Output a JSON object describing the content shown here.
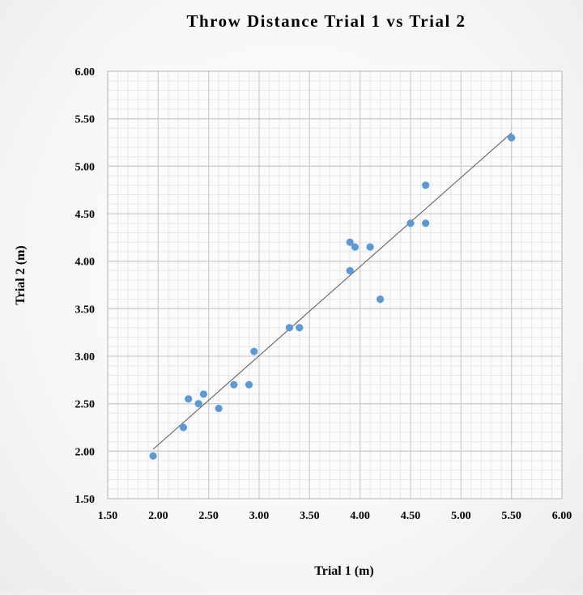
{
  "chart_data": {
    "type": "scatter",
    "title": "Throw Distance Trial 1 vs Trial 2",
    "xlabel": "Trial 1 (m)",
    "ylabel": "Trial 2 (m)",
    "xlim": [
      1.5,
      6.0
    ],
    "ylim": [
      1.5,
      6.0
    ],
    "x_ticks": [
      "1.50",
      "2.00",
      "2.50",
      "3.00",
      "3.50",
      "4.00",
      "4.50",
      "5.00",
      "5.50",
      "6.00"
    ],
    "y_ticks": [
      "1.50",
      "2.00",
      "2.50",
      "3.00",
      "3.50",
      "4.00",
      "4.50",
      "5.00",
      "5.50",
      "6.00"
    ],
    "grid": true,
    "minor_grid": true,
    "point_color": "#5b9bd5",
    "trendline": {
      "type": "linear",
      "x_start": 1.95,
      "x_end": 5.5,
      "y_start": 2.02,
      "y_end": 5.35,
      "color": "#595959"
    },
    "points": [
      {
        "x": 1.95,
        "y": 1.95
      },
      {
        "x": 2.25,
        "y": 2.25
      },
      {
        "x": 2.3,
        "y": 2.55
      },
      {
        "x": 2.4,
        "y": 2.5
      },
      {
        "x": 2.45,
        "y": 2.6
      },
      {
        "x": 2.6,
        "y": 2.45
      },
      {
        "x": 2.75,
        "y": 2.7
      },
      {
        "x": 2.9,
        "y": 2.7
      },
      {
        "x": 2.95,
        "y": 3.05
      },
      {
        "x": 3.3,
        "y": 3.3
      },
      {
        "x": 3.4,
        "y": 3.3
      },
      {
        "x": 3.9,
        "y": 4.2
      },
      {
        "x": 3.9,
        "y": 3.9
      },
      {
        "x": 3.95,
        "y": 4.15
      },
      {
        "x": 4.1,
        "y": 4.15
      },
      {
        "x": 4.2,
        "y": 3.6
      },
      {
        "x": 4.5,
        "y": 4.4
      },
      {
        "x": 4.65,
        "y": 4.8
      },
      {
        "x": 4.65,
        "y": 4.4
      },
      {
        "x": 5.5,
        "y": 5.3
      }
    ]
  }
}
